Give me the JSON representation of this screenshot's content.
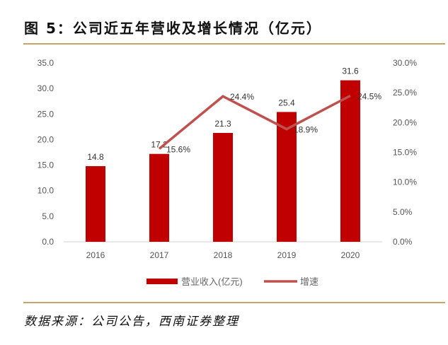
{
  "title": "图 5：公司近五年营收及增长情况（亿元）",
  "source": "数据来源：公司公告，西南证券整理",
  "chart_data": {
    "type": "bar",
    "categories": [
      "2016",
      "2017",
      "2018",
      "2019",
      "2020"
    ],
    "series": [
      {
        "name": "营业收入(亿元)",
        "type": "bar",
        "axis": "left",
        "values": [
          14.8,
          17.2,
          21.3,
          25.4,
          31.6
        ],
        "labels": [
          "14.8",
          "17.2",
          "21.3",
          "25.4",
          "31.6"
        ],
        "color": "#c00000"
      },
      {
        "name": "增速",
        "type": "line",
        "axis": "right",
        "values": [
          null,
          15.6,
          24.4,
          18.9,
          24.5
        ],
        "labels": [
          "",
          "15.6%",
          "24.4%",
          "18.9%",
          "24.5%"
        ],
        "color": "#c0504d"
      }
    ],
    "ylim": [
      0,
      35
    ],
    "yticks": [
      "0.0",
      "5.0",
      "10.0",
      "15.0",
      "20.0",
      "25.0",
      "30.0",
      "35.0"
    ],
    "y2lim": [
      0,
      30
    ],
    "y2ticks": [
      "0.0%",
      "5.0%",
      "10.0%",
      "15.0%",
      "20.0%",
      "25.0%",
      "30.0%"
    ],
    "legend": "bottom",
    "grid": false
  }
}
